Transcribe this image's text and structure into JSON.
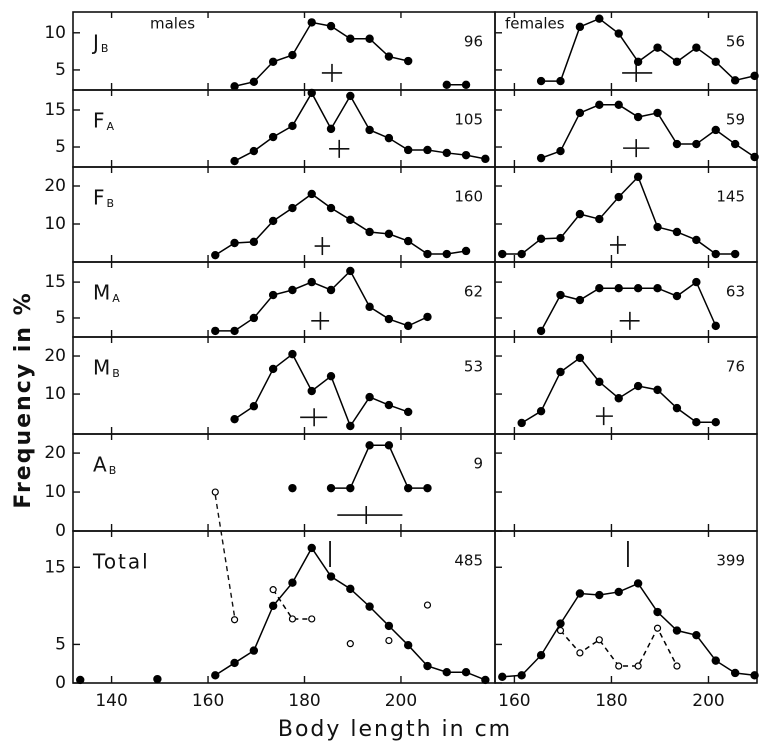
{
  "ylabel": "Frequency in %",
  "xlabel": "Body length in cm",
  "chart_data": [
    {
      "type": "line",
      "column_title": "males",
      "title": "J",
      "title_sub": "B",
      "annotation": "96",
      "xlim": [
        132,
        219.5
      ],
      "xticks": [
        140,
        160,
        180,
        200
      ],
      "ylim": [
        2.3,
        12.8
      ],
      "yticks": [
        5,
        10
      ],
      "x": [
        165.5,
        169.5,
        173.5,
        177.5,
        181.5,
        185.5,
        189.5,
        193.5,
        197.5,
        201.5,
        205.5,
        209.5,
        213.5
      ],
      "series": [
        {
          "color": "#000000",
          "marker": "filled",
          "values": [
            2.8,
            3.4,
            6.1,
            7,
            11.4,
            10.9,
            9.2,
            9.2,
            6.8,
            6.2,
            null,
            3,
            3
          ]
        }
      ],
      "mean": {
        "x": 185.7,
        "y": 4.6,
        "range": [
          183.6,
          187.8
        ]
      }
    },
    {
      "type": "line",
      "column_title": "females",
      "annotation": "56",
      "xlim": [
        156,
        210
      ],
      "xticks": [
        160,
        180,
        200
      ],
      "ylim": [
        2.3,
        12.8
      ],
      "yticks": [
        5,
        10
      ],
      "x": [
        165.5,
        169.5,
        173.5,
        177.5,
        181.5,
        185.5,
        189.5,
        193.5,
        197.5,
        201.5,
        205.5,
        209.5
      ],
      "series": [
        {
          "color": "#000000",
          "marker": "filled",
          "values": [
            3.5,
            3.5,
            10.8,
            11.9,
            9.9,
            6.1,
            8,
            6.1,
            8,
            6.1,
            3.6,
            4.2
          ]
        }
      ],
      "mean": {
        "x": 185.1,
        "y": 4.6,
        "range": [
          182.2,
          188.4
        ]
      }
    },
    {
      "type": "line",
      "title": "F",
      "title_sub": "A",
      "annotation": "105",
      "xlim": [
        132,
        219.5
      ],
      "xticks": [
        140,
        160,
        180,
        200
      ],
      "ylim": [
        -0.4,
        20.4
      ],
      "yticks": [
        5,
        15
      ],
      "x": [
        165.5,
        169.5,
        173.5,
        177.5,
        181.5,
        185.5,
        189.5,
        193.5,
        197.5,
        201.5,
        205.5,
        209.5,
        213.5,
        217.5
      ],
      "series": [
        {
          "color": "#000000",
          "marker": "filled",
          "values": [
            1.2,
            3.9,
            7.7,
            10.7,
            19.6,
            9.9,
            18.8,
            9.6,
            7.4,
            4.2,
            4.2,
            3.4,
            2.8,
            1.8
          ]
        }
      ],
      "mean": {
        "x": 187.2,
        "y": 4.5,
        "range": [
          185.1,
          189.3
        ]
      }
    },
    {
      "type": "line",
      "annotation": "59",
      "xlim": [
        156,
        210
      ],
      "xticks": [
        160,
        180,
        200
      ],
      "ylim": [
        -0.4,
        20.4
      ],
      "yticks": [
        5,
        15
      ],
      "x": [
        165.5,
        169.5,
        173.5,
        177.5,
        181.5,
        185.5,
        189.5,
        193.5,
        197.5,
        201.5,
        205.5,
        209.5
      ],
      "series": [
        {
          "color": "#000000",
          "marker": "filled",
          "values": [
            2,
            3.9,
            14.2,
            16.4,
            16.4,
            13.1,
            14.2,
            5.8,
            5.8,
            9.6,
            5.8,
            2.3
          ]
        }
      ],
      "mean": {
        "x": 185.1,
        "y": 4.7,
        "range": [
          182.4,
          187.8
        ]
      }
    },
    {
      "type": "line",
      "title": "F",
      "title_sub": "B",
      "annotation": "160",
      "xlim": [
        132,
        219.5
      ],
      "xticks": [
        140,
        160,
        180,
        200
      ],
      "ylim": [
        0,
        25
      ],
      "yticks": [
        10,
        20
      ],
      "x": [
        161.5,
        165.5,
        169.5,
        173.5,
        177.5,
        181.5,
        185.5,
        189.5,
        193.5,
        197.5,
        201.5,
        205.5,
        209.5,
        213.5
      ],
      "series": [
        {
          "color": "#000000",
          "marker": "filled",
          "values": [
            1.8,
            5,
            5.3,
            10.8,
            14.2,
            17.9,
            14.2,
            11.1,
            7.9,
            7.4,
            5.5,
            2.1,
            2.1,
            2.9
          ]
        }
      ],
      "mean": {
        "x": 183.7,
        "y": 4.2,
        "range": [
          182.1,
          185.3
        ]
      }
    },
    {
      "type": "line",
      "annotation": "145",
      "xlim": [
        156,
        210
      ],
      "xticks": [
        160,
        180,
        200
      ],
      "ylim": [
        0,
        25
      ],
      "yticks": [
        10,
        20
      ],
      "x": [
        157.5,
        161.5,
        165.5,
        169.5,
        173.5,
        177.5,
        181.5,
        185.5,
        189.5,
        193.5,
        197.5,
        201.5,
        205.5
      ],
      "series": [
        {
          "color": "#000000",
          "marker": "filled",
          "values": [
            2.1,
            2.1,
            6.1,
            6.3,
            12.6,
            11.3,
            17.1,
            22.4,
            9.2,
            7.9,
            5.8,
            2.1,
            2.1
          ]
        }
      ],
      "mean": {
        "x": 181.3,
        "y": 4.5,
        "range": [
          179.7,
          183
        ]
      }
    },
    {
      "type": "line",
      "title": "M",
      "title_sub": "A",
      "annotation": "62",
      "xlim": [
        132,
        219.5
      ],
      "xticks": [
        140,
        160,
        180,
        200
      ],
      "ylim": [
        -0.3,
        20.6
      ],
      "yticks": [
        5,
        15
      ],
      "x": [
        161.5,
        165.5,
        169.5,
        173.5,
        177.5,
        181.5,
        185.5,
        189.5,
        193.5,
        197.5,
        201.5,
        205.5
      ],
      "series": [
        {
          "color": "#000000",
          "marker": "filled",
          "values": [
            1.4,
            1.4,
            5,
            11.4,
            12.8,
            15,
            12.8,
            18.1,
            8.1,
            4.7,
            2.8,
            5.3
          ]
        }
      ],
      "mean": {
        "x": 183.3,
        "y": 4.2,
        "range": [
          181.4,
          185.1
        ]
      }
    },
    {
      "type": "line",
      "annotation": "63",
      "xlim": [
        156,
        210
      ],
      "xticks": [
        160,
        180,
        200
      ],
      "ylim": [
        -0.3,
        20.6
      ],
      "yticks": [
        5,
        15
      ],
      "x": [
        165.5,
        169.5,
        173.5,
        177.5,
        181.5,
        185.5,
        189.5,
        193.5,
        197.5,
        201.5
      ],
      "series": [
        {
          "color": "#000000",
          "marker": "filled",
          "values": [
            1.4,
            11.4,
            10,
            13.3,
            13.3,
            13.3,
            13.3,
            11.1,
            15,
            2.8
          ]
        }
      ],
      "mean": {
        "x": 183.8,
        "y": 4.2,
        "range": [
          181.7,
          185.8
        ]
      }
    },
    {
      "type": "line",
      "title": "M",
      "title_sub": "B",
      "annotation": "53",
      "xlim": [
        132,
        219.5
      ],
      "xticks": [
        140,
        160,
        180,
        200
      ],
      "ylim": [
        -0.5,
        25
      ],
      "yticks": [
        10,
        20
      ],
      "x": [
        165.5,
        169.5,
        173.5,
        177.5,
        181.5,
        185.5,
        189.5,
        193.5,
        197.5,
        201.5
      ],
      "series": [
        {
          "color": "#000000",
          "marker": "filled",
          "values": [
            3.4,
            6.8,
            16.6,
            20.5,
            10.8,
            14.7,
            1.6,
            9.2,
            7.1,
            5.3
          ]
        }
      ],
      "mean": {
        "x": 182,
        "y": 3.9,
        "range": [
          179.1,
          184.7
        ]
      }
    },
    {
      "type": "line",
      "annotation": "76",
      "xlim": [
        156,
        210
      ],
      "xticks": [
        160,
        180,
        200
      ],
      "ylim": [
        -0.5,
        25
      ],
      "yticks": [
        10,
        20
      ],
      "x": [
        161.5,
        165.5,
        169.5,
        173.5,
        177.5,
        181.5,
        185.5,
        189.5,
        193.5,
        197.5,
        201.5
      ],
      "series": [
        {
          "color": "#000000",
          "marker": "filled",
          "values": [
            2.4,
            5.5,
            15.8,
            19.5,
            13.2,
            8.9,
            12.1,
            11.1,
            6.3,
            2.6,
            2.6
          ]
        }
      ],
      "mean": {
        "x": 178.4,
        "y": 4.2,
        "range": [
          176.8,
          180.3
        ]
      }
    },
    {
      "type": "line",
      "title": "A",
      "title_sub": "B",
      "annotation": "9",
      "xlim": [
        132,
        219.5
      ],
      "xticks": [
        140,
        160,
        180,
        200
      ],
      "ylim": [
        0,
        24.9
      ],
      "yticks": [
        0,
        10,
        20
      ],
      "x": [
        161.5,
        165.5,
        169.5,
        173.5,
        177.5,
        181.5,
        185.5,
        189.5,
        193.5,
        197.5,
        201.5,
        205.5
      ],
      "series": [
        {
          "color": "#000000",
          "marker": "filled",
          "values": [
            null,
            null,
            null,
            null,
            11,
            null,
            11,
            11,
            22,
            22,
            11,
            11
          ]
        },
        {
          "color": "#000000",
          "marker": "open",
          "dash": true,
          "values": [
            10,
            null,
            null,
            null,
            null,
            null,
            null,
            null,
            null,
            null,
            null,
            null
          ]
        }
      ],
      "mean": {
        "x": 192.8,
        "y": 4.1,
        "range": [
          186.8,
          200.3
        ]
      }
    },
    {
      "type": "line",
      "xlim": [
        156,
        210
      ],
      "xticks": [
        160,
        180,
        200
      ],
      "ylim": [
        0,
        24.9
      ],
      "yticks": [
        0,
        10,
        20
      ]
    },
    {
      "type": "line",
      "title": "Total",
      "annotation": "485",
      "xlim": [
        132,
        219.5
      ],
      "xticks": [
        140,
        160,
        180,
        200
      ],
      "ylim": [
        0,
        19.7
      ],
      "yticks": [
        0,
        5,
        15
      ],
      "x": [
        133.5,
        137.5,
        141.5,
        145.5,
        149.5,
        153.5,
        157.5,
        161.5,
        165.5,
        169.5,
        173.5,
        177.5,
        181.5,
        185.5,
        189.5,
        193.5,
        197.5,
        201.5,
        205.5,
        209.5,
        213.5,
        217.5
      ],
      "series": [
        {
          "color": "#000000",
          "marker": "filled",
          "values": [
            0.4,
            null,
            null,
            null,
            0.5,
            null,
            null,
            1,
            2.6,
            4.2,
            10,
            13,
            17.5,
            13.8,
            12.2,
            9.9,
            7.4,
            4.9,
            2.2,
            1.4,
            1.4,
            0.4
          ]
        },
        {
          "color": "#000000",
          "marker": "open",
          "dash": true,
          "values": [
            null,
            null,
            null,
            null,
            null,
            null,
            null,
            null,
            8.2,
            null,
            12.1,
            8.3,
            8.3,
            null,
            5.1,
            null,
            5.5,
            null,
            10.1,
            null,
            null,
            null
          ]
        }
      ],
      "mean": {
        "x": 185.3
      }
    },
    {
      "type": "line",
      "annotation": "399",
      "xlim": [
        156,
        210
      ],
      "xticks": [
        160,
        180,
        200
      ],
      "ylim": [
        0,
        19.7
      ],
      "yticks": [
        0,
        5,
        15
      ],
      "x": [
        157.5,
        161.5,
        165.5,
        169.5,
        173.5,
        177.5,
        181.5,
        185.5,
        189.5,
        193.5,
        197.5,
        201.5,
        205.5,
        209.5
      ],
      "series": [
        {
          "color": "#000000",
          "marker": "filled",
          "values": [
            0.8,
            1,
            3.6,
            7.7,
            11.6,
            11.4,
            11.8,
            12.9,
            9.2,
            6.8,
            6.2,
            2.9,
            1.3,
            1
          ]
        },
        {
          "color": "#000000",
          "marker": "open",
          "dash": true,
          "values": [
            null,
            null,
            null,
            6.8,
            3.9,
            5.6,
            2.2,
            2.2,
            7.1,
            2.2,
            null,
            null,
            null,
            null
          ]
        }
      ],
      "mean": {
        "x": 183.4
      }
    }
  ]
}
